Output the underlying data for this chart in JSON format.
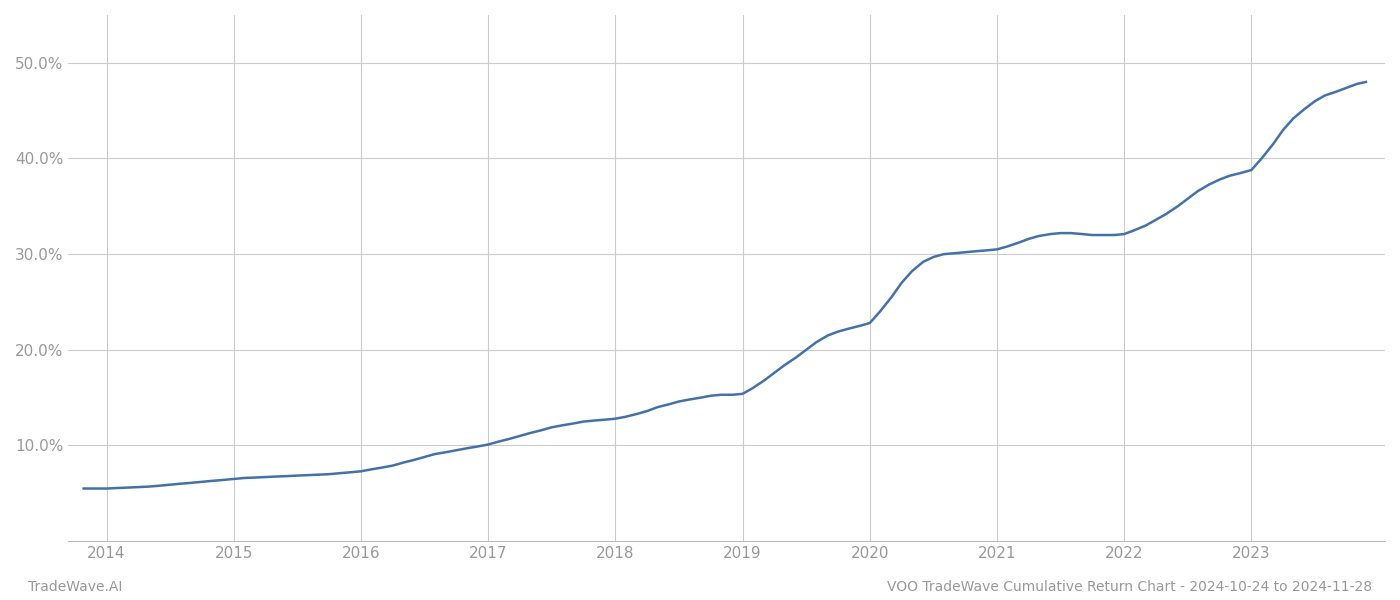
{
  "title": "VOO TradeWave Cumulative Return Chart - 2024-10-24 to 2024-11-28",
  "left_label": "TradeWave.AI",
  "line_color": "#4472a8",
  "background_color": "#ffffff",
  "grid_color": "#cccccc",
  "x_years": [
    2013.82,
    2014.0,
    2014.08,
    2014.17,
    2014.25,
    2014.33,
    2014.42,
    2014.5,
    2014.58,
    2014.67,
    2014.75,
    2014.83,
    2014.92,
    2015.0,
    2015.08,
    2015.17,
    2015.25,
    2015.33,
    2015.42,
    2015.5,
    2015.58,
    2015.67,
    2015.75,
    2015.83,
    2015.92,
    2016.0,
    2016.08,
    2016.17,
    2016.25,
    2016.33,
    2016.42,
    2016.5,
    2016.58,
    2016.67,
    2016.75,
    2016.83,
    2016.92,
    2017.0,
    2017.08,
    2017.17,
    2017.25,
    2017.33,
    2017.42,
    2017.5,
    2017.58,
    2017.67,
    2017.75,
    2017.83,
    2017.92,
    2018.0,
    2018.08,
    2018.17,
    2018.25,
    2018.33,
    2018.42,
    2018.5,
    2018.58,
    2018.67,
    2018.75,
    2018.83,
    2018.92,
    2019.0,
    2019.08,
    2019.17,
    2019.25,
    2019.33,
    2019.42,
    2019.5,
    2019.58,
    2019.67,
    2019.75,
    2019.83,
    2019.92,
    2020.0,
    2020.08,
    2020.17,
    2020.25,
    2020.33,
    2020.42,
    2020.5,
    2020.58,
    2020.67,
    2020.75,
    2020.83,
    2020.92,
    2021.0,
    2021.08,
    2021.17,
    2021.25,
    2021.33,
    2021.42,
    2021.5,
    2021.58,
    2021.67,
    2021.75,
    2021.83,
    2021.92,
    2022.0,
    2022.08,
    2022.17,
    2022.25,
    2022.33,
    2022.42,
    2022.5,
    2022.58,
    2022.67,
    2022.75,
    2022.83,
    2022.92,
    2023.0,
    2023.08,
    2023.17,
    2023.25,
    2023.33,
    2023.42,
    2023.5,
    2023.58,
    2023.67,
    2023.75,
    2023.83,
    2023.9
  ],
  "y_values": [
    5.5,
    5.5,
    5.55,
    5.6,
    5.65,
    5.7,
    5.8,
    5.9,
    6.0,
    6.1,
    6.2,
    6.3,
    6.4,
    6.5,
    6.6,
    6.65,
    6.7,
    6.75,
    6.8,
    6.85,
    6.9,
    6.95,
    7.0,
    7.1,
    7.2,
    7.3,
    7.5,
    7.7,
    7.9,
    8.2,
    8.5,
    8.8,
    9.1,
    9.3,
    9.5,
    9.7,
    9.9,
    10.1,
    10.4,
    10.7,
    11.0,
    11.3,
    11.6,
    11.9,
    12.1,
    12.3,
    12.5,
    12.6,
    12.7,
    12.8,
    13.0,
    13.3,
    13.6,
    14.0,
    14.3,
    14.6,
    14.8,
    15.0,
    15.2,
    15.3,
    15.3,
    15.4,
    16.0,
    16.8,
    17.6,
    18.4,
    19.2,
    20.0,
    20.8,
    21.5,
    21.9,
    22.2,
    22.5,
    22.8,
    24.0,
    25.5,
    27.0,
    28.2,
    29.2,
    29.7,
    30.0,
    30.1,
    30.2,
    30.3,
    30.4,
    30.5,
    30.8,
    31.2,
    31.6,
    31.9,
    32.1,
    32.2,
    32.2,
    32.1,
    32.0,
    32.0,
    32.0,
    32.1,
    32.5,
    33.0,
    33.6,
    34.2,
    35.0,
    35.8,
    36.6,
    37.3,
    37.8,
    38.2,
    38.5,
    38.8,
    40.0,
    41.5,
    43.0,
    44.2,
    45.2,
    46.0,
    46.6,
    47.0,
    47.4,
    47.8,
    48.0
  ],
  "yticks": [
    10.0,
    20.0,
    30.0,
    40.0,
    50.0
  ],
  "ytick_labels": [
    "10.0%",
    "20.0%",
    "30.0%",
    "40.0%",
    "50.0%"
  ],
  "xtick_years": [
    2014,
    2015,
    2016,
    2017,
    2018,
    2019,
    2020,
    2021,
    2022,
    2023
  ],
  "ylim": [
    0,
    55
  ],
  "xlim": [
    2013.7,
    2024.05
  ],
  "figsize": [
    14,
    6
  ],
  "dpi": 100,
  "line_width": 1.8,
  "spine_color": "#bbbbbb",
  "tick_color": "#999999",
  "label_fontsize": 10,
  "tick_fontsize": 11
}
